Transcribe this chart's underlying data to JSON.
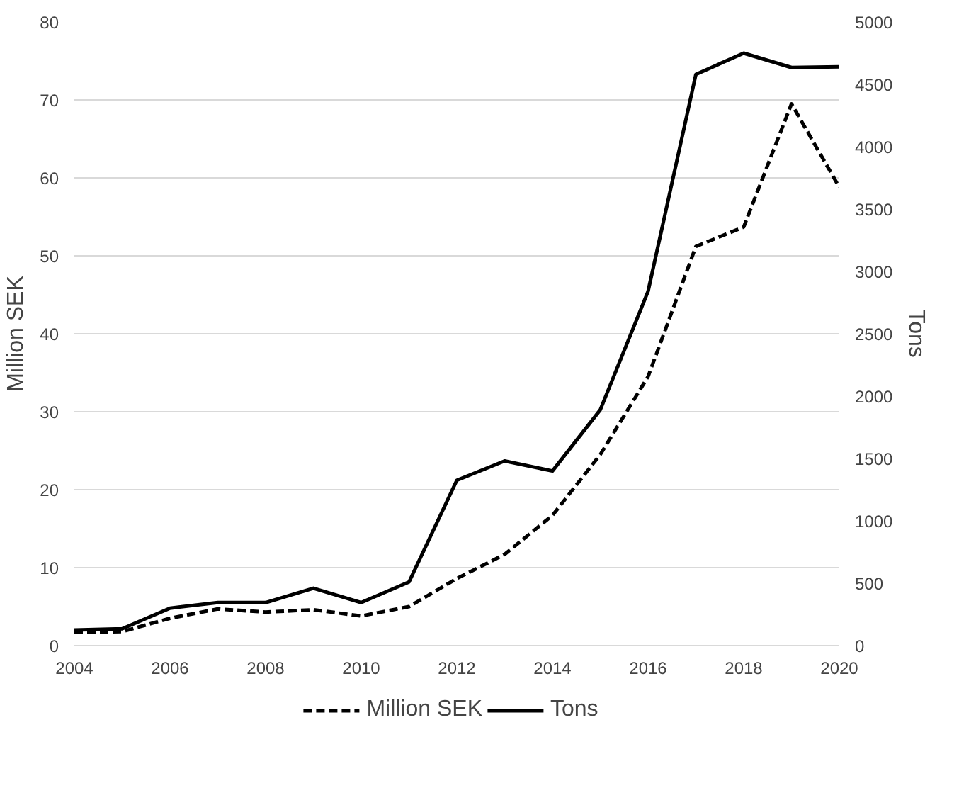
{
  "chart_data": {
    "type": "line",
    "ylabel": "Million SEK",
    "y2label": "Tons",
    "x": [
      2004,
      2005,
      2006,
      2007,
      2008,
      2009,
      2010,
      2011,
      2012,
      2013,
      2014,
      2015,
      2016,
      2017,
      2018,
      2019,
      2020
    ],
    "series": [
      {
        "name": "Million SEK",
        "color": "#000000",
        "line_style": "dashed",
        "values": [
          1.7,
          1.8,
          3.5,
          4.7,
          4.3,
          4.6,
          3.8,
          5.0,
          8.6,
          11.7,
          16.7,
          24.5,
          34.5,
          51.2,
          53.7,
          69.5,
          58.8
        ]
      },
      {
        "name": "Tons",
        "color": "#000000",
        "line_style": "solid",
        "axis": "y2",
        "values": [
          125,
          135,
          300,
          345,
          345,
          460,
          345,
          510,
          1325,
          1480,
          1400,
          1890,
          2840,
          4580,
          4750,
          4635,
          4640
        ]
      }
    ],
    "xlim": [
      2004,
      2020
    ],
    "xticks": [
      2004,
      2006,
      2008,
      2010,
      2012,
      2014,
      2016,
      2018,
      2020
    ],
    "ylim": [
      0,
      80
    ],
    "yticks": [
      0,
      10,
      20,
      30,
      40,
      50,
      60,
      70,
      80
    ],
    "y2lim": [
      0,
      5000
    ],
    "y2ticks": [
      0,
      500,
      1000,
      1500,
      2000,
      2500,
      3000,
      3500,
      4000,
      4500,
      5000
    ],
    "grid": "y",
    "legend": "bottom",
    "marker": "none"
  }
}
